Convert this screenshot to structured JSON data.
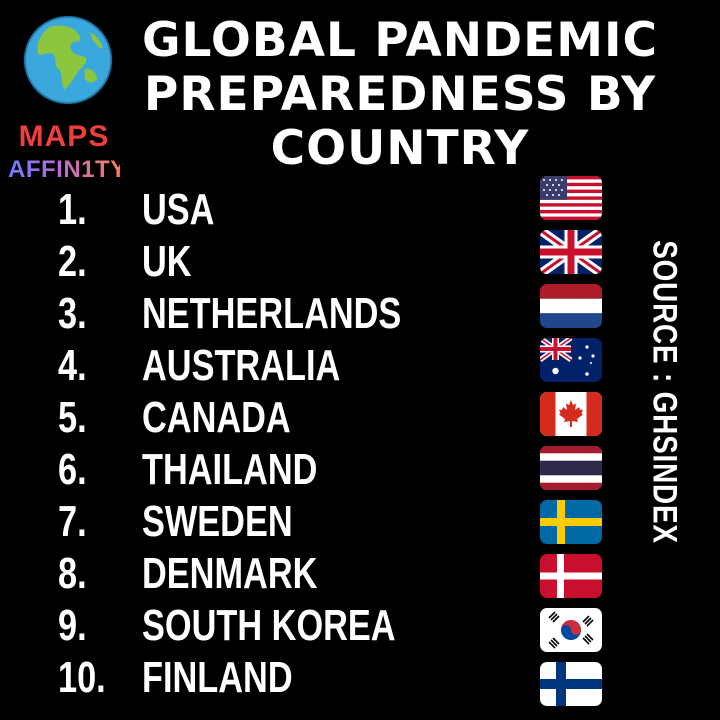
{
  "logo": {
    "line1": "MAPS",
    "line2": "AFFIN1TY",
    "icon": "globe-icon"
  },
  "title": "GLOBAL PANDEMIC PREPAREDNESS BY COUNTRY",
  "rankings": [
    {
      "rank": "1.",
      "country": "USA",
      "flag": "usa-flag-icon"
    },
    {
      "rank": "2.",
      "country": "UK",
      "flag": "uk-flag-icon"
    },
    {
      "rank": "3.",
      "country": "NETHERLANDS",
      "flag": "netherlands-flag-icon"
    },
    {
      "rank": "4.",
      "country": "AUSTRALIA",
      "flag": "australia-flag-icon"
    },
    {
      "rank": "5.",
      "country": "CANADA",
      "flag": "canada-flag-icon"
    },
    {
      "rank": "6.",
      "country": "THAILAND",
      "flag": "thailand-flag-icon"
    },
    {
      "rank": "7.",
      "country": "SWEDEN",
      "flag": "sweden-flag-icon"
    },
    {
      "rank": "8.",
      "country": "DENMARK",
      "flag": "denmark-flag-icon"
    },
    {
      "rank": "9.",
      "country": "SOUTH KOREA",
      "flag": "south-korea-flag-icon"
    },
    {
      "rank": "10.",
      "country": "FINLAND",
      "flag": "finland-flag-icon"
    }
  ],
  "source": "SOURCE : GHSINDEX",
  "colors": {
    "background": "#000000",
    "text": "#ffffff",
    "logo_red": "#ee3e3e"
  }
}
